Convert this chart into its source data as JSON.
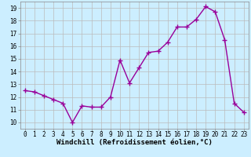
{
  "hours": [
    0,
    1,
    2,
    3,
    4,
    5,
    6,
    7,
    8,
    9,
    10,
    11,
    12,
    13,
    14,
    15,
    16,
    17,
    18,
    19,
    20,
    21,
    22,
    23
  ],
  "values": [
    12.5,
    12.4,
    12.1,
    11.8,
    11.5,
    10.0,
    11.3,
    11.2,
    11.2,
    12.0,
    14.9,
    13.1,
    14.3,
    15.5,
    15.6,
    16.3,
    17.5,
    17.5,
    18.1,
    19.1,
    18.7,
    16.5,
    11.5,
    10.8
  ],
  "line_color": "#990099",
  "marker": "+",
  "marker_size": 4,
  "bg_color": "#cceeff",
  "grid_color": "#bbbbbb",
  "xlabel": "Windchill (Refroidissement éolien,°C)",
  "xlim": [
    -0.5,
    23.5
  ],
  "ylim": [
    9.5,
    19.5
  ],
  "yticks": [
    10,
    11,
    12,
    13,
    14,
    15,
    16,
    17,
    18,
    19
  ],
  "xticks": [
    0,
    1,
    2,
    3,
    4,
    5,
    6,
    7,
    8,
    9,
    10,
    11,
    12,
    13,
    14,
    15,
    16,
    17,
    18,
    19,
    20,
    21,
    22,
    23
  ],
  "tick_label_size": 5.5,
  "xlabel_size": 6.5,
  "line_width": 1.0
}
